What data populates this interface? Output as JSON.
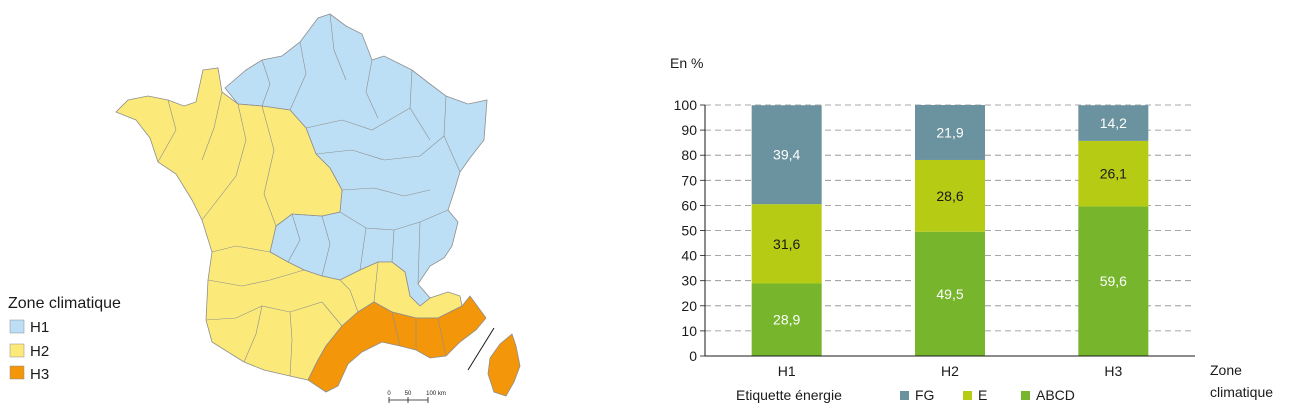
{
  "map": {
    "legend_title": "Zone climatique",
    "zones": [
      {
        "label": "H1",
        "color": "#bcdff5"
      },
      {
        "label": "H2",
        "color": "#fbea7a"
      },
      {
        "label": "H3",
        "color": "#f3960a"
      }
    ],
    "scale": {
      "labels": [
        "0",
        "50",
        "100 km"
      ]
    }
  },
  "chart_data": {
    "type": "bar",
    "stacked": true,
    "categories": [
      "H1",
      "H2",
      "H3"
    ],
    "series": [
      {
        "name": "ABCD",
        "values": [
          28.9,
          49.5,
          59.6
        ],
        "labels": [
          "28,9",
          "49,5",
          "59,6"
        ],
        "color": "#76b52c",
        "label_color": "#ffffff"
      },
      {
        "name": "E",
        "values": [
          31.6,
          28.6,
          26.1
        ],
        "labels": [
          "31,6",
          "28,6",
          "26,1"
        ],
        "color": "#b5cb14",
        "label_color": "#1a1a1a"
      },
      {
        "name": "FG",
        "values": [
          39.4,
          21.9,
          14.2
        ],
        "labels": [
          "39,4",
          "21,9",
          "14,2"
        ],
        "color": "#6b929f",
        "label_color": "#ffffff"
      }
    ],
    "unit_label": "En %",
    "xlabel": "Zone climatique",
    "xlabel_lines": [
      "Zone",
      "climatique"
    ],
    "legend_title": "Etiquette énergie",
    "legend_order": [
      "FG",
      "E",
      "ABCD"
    ],
    "legend_placement": "bottom",
    "ylim": [
      0,
      100
    ],
    "yticks": [
      0,
      10,
      20,
      30,
      40,
      50,
      60,
      70,
      80,
      90,
      100
    ],
    "grid": true
  }
}
